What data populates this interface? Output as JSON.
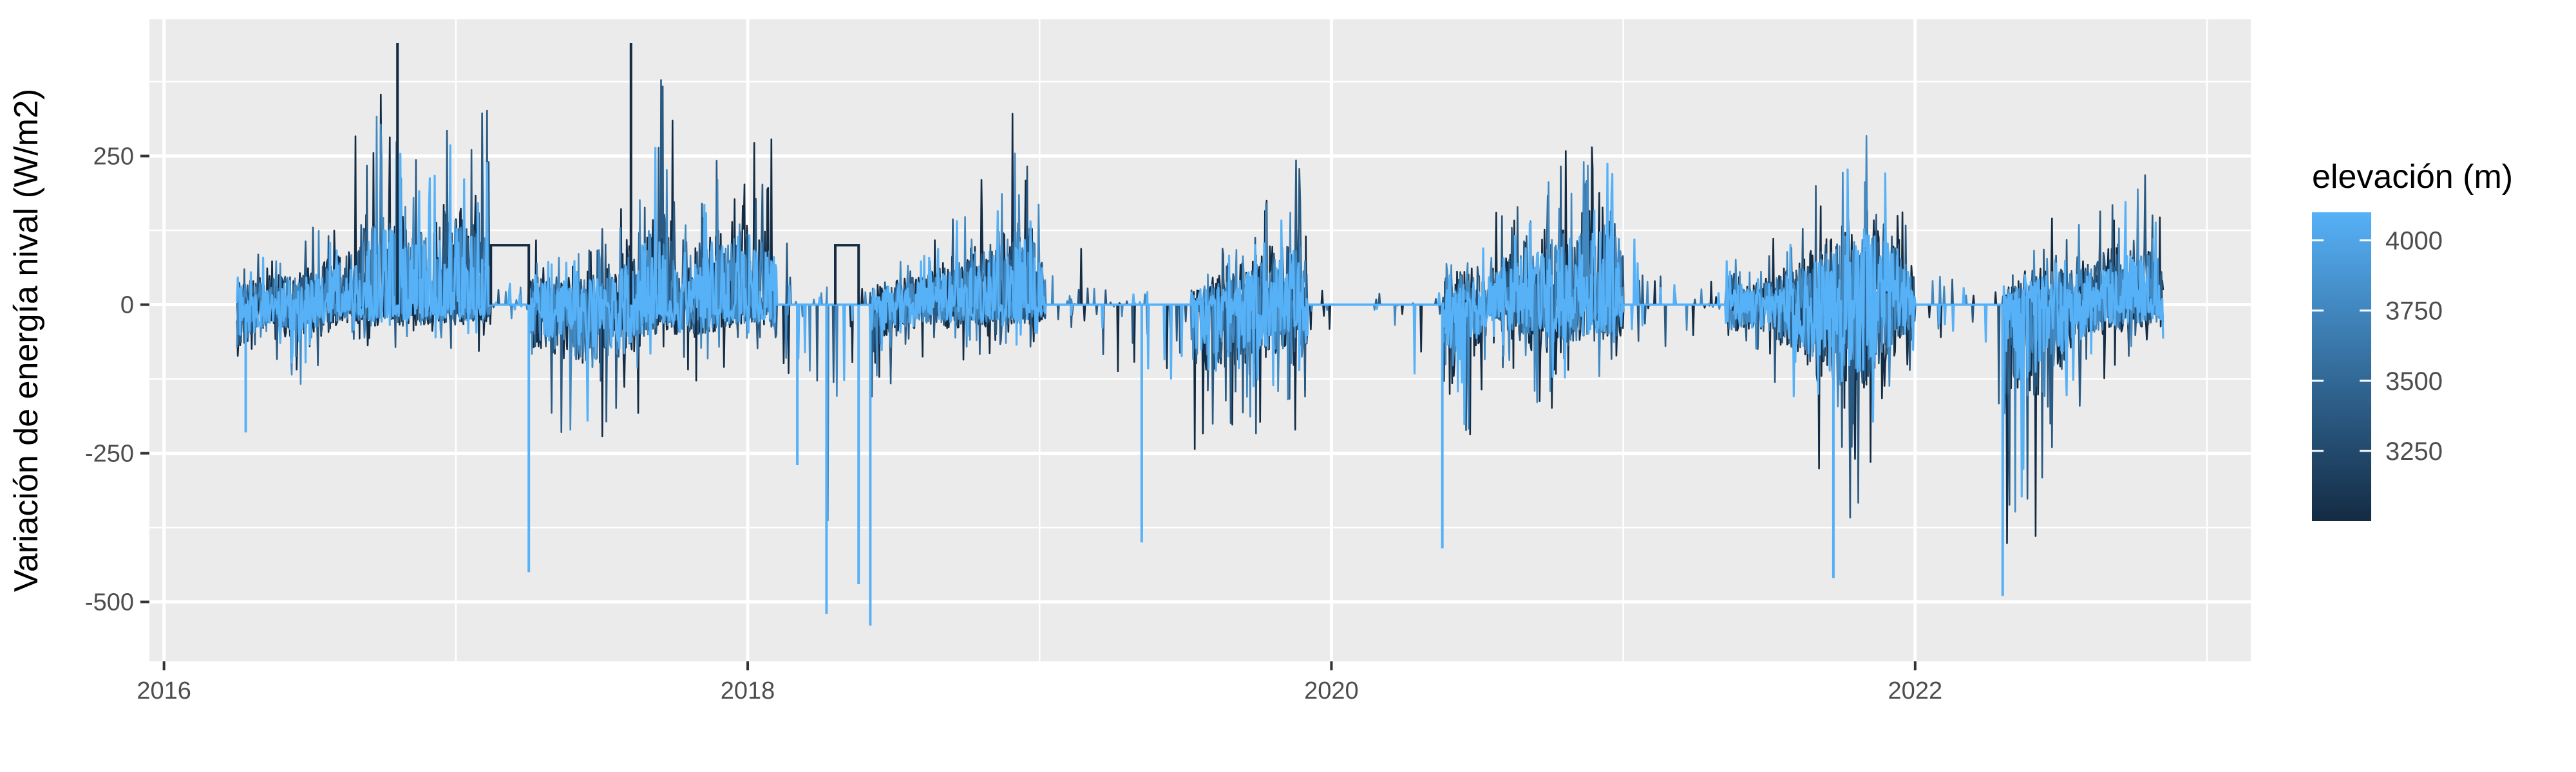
{
  "chart_data": {
    "type": "line",
    "title": "",
    "xlabel": "",
    "ylabel": "Variación de energía nival (W/m2)",
    "x_ticks": [
      "2016",
      "2018",
      "2020",
      "2022"
    ],
    "y_ticks": [
      -500,
      -250,
      0,
      250
    ],
    "xlim": [
      2015.95,
      2023.15
    ],
    "ylim": [
      -600,
      480
    ],
    "grid": true,
    "legend": {
      "title": "elevación (m)",
      "type": "colorbar",
      "position": "right",
      "ticks": [
        3250,
        3500,
        3750,
        4000
      ],
      "range": [
        3000,
        4100
      ],
      "colors": [
        "#132B43",
        "#56B1F7"
      ]
    },
    "series_description": "Daily snowpack energy variation per elevation band (3000–4100 m), dense oscillation mostly between -80 and +100 W/m2 with seasonal bursts.",
    "envelope": {
      "x": [
        2016.25,
        2016.35,
        2016.5,
        2016.6,
        2016.75,
        2016.85,
        2016.95,
        2017.1,
        2017.15,
        2017.25,
        2017.4,
        2017.55,
        2017.7,
        2017.8,
        2017.95,
        2018.08,
        2018.2,
        2018.3,
        2018.42,
        2018.6,
        2018.8,
        2018.95,
        2019.05,
        2019.35,
        2019.55,
        2019.75,
        2019.88,
        2020.1,
        2020.3,
        2020.4,
        2020.55,
        2020.7,
        2020.8,
        2020.95,
        2021.05,
        2021.3,
        2021.45,
        2021.6,
        2021.75,
        2021.88,
        2022.0,
        2022.15,
        2022.3,
        2022.45,
        2022.6,
        2022.75,
        2022.85
      ],
      "upper": [
        90,
        110,
        140,
        200,
        430,
        300,
        380,
        420,
        105,
        110,
        120,
        150,
        430,
        200,
        330,
        300,
        40,
        100,
        80,
        120,
        240,
        360,
        120,
        80,
        60,
        200,
        290,
        110,
        20,
        130,
        150,
        270,
        330,
        380,
        230,
        160,
        80,
        170,
        320,
        380,
        130,
        160,
        60,
        150,
        170,
        270,
        200
      ],
      "lower": [
        -220,
        -100,
        -180,
        -80,
        -90,
        -90,
        -85,
        -80,
        0,
        -180,
        -270,
        -260,
        -120,
        -150,
        -100,
        -100,
        -520,
        -540,
        -180,
        -100,
        -100,
        -90,
        -60,
        -400,
        -280,
        -240,
        -220,
        -30,
        -210,
        -410,
        -90,
        -210,
        -200,
        -160,
        -180,
        -140,
        -110,
        -220,
        -460,
        -280,
        -120,
        -150,
        -490,
        -400,
        -150,
        -100,
        -95
      ]
    },
    "spikes": [
      {
        "x": 2016.8,
        "y": 440
      },
      {
        "x": 2017.6,
        "y": 440
      },
      {
        "x": 2017.25,
        "y": -450
      },
      {
        "x": 2018.27,
        "y": -520
      },
      {
        "x": 2018.42,
        "y": -540
      },
      {
        "x": 2018.38,
        "y": -470
      },
      {
        "x": 2019.35,
        "y": -400
      },
      {
        "x": 2020.38,
        "y": -410
      },
      {
        "x": 2021.72,
        "y": -460
      },
      {
        "x": 2022.3,
        "y": -490
      },
      {
        "x": 2016.28,
        "y": -215
      },
      {
        "x": 2018.17,
        "y": -270
      }
    ],
    "flat_segments": [
      {
        "x": [
          2017.12,
          2017.25
        ],
        "y": 100
      },
      {
        "x": [
          2018.3,
          2018.38
        ],
        "y": 100
      }
    ],
    "data_extent": [
      2016.25,
      2022.85
    ]
  }
}
